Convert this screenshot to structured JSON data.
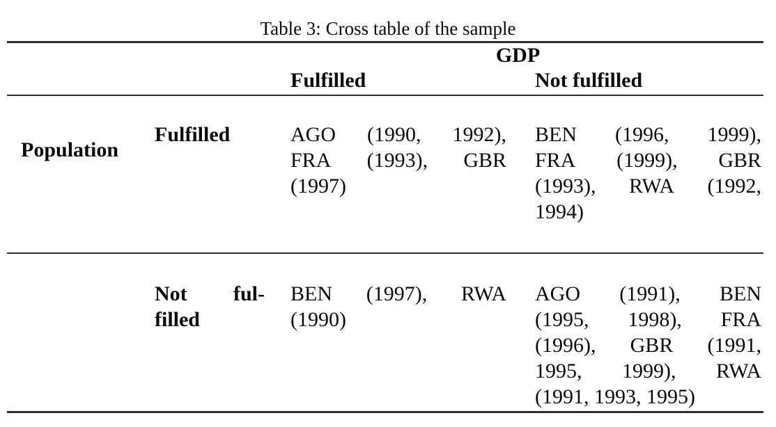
{
  "title": "Table 3: Cross table of the sample",
  "table": {
    "column_group_header": "GDP",
    "row_group_header": "Population",
    "column_headers": [
      "Fulfilled",
      "Not fulfilled"
    ],
    "rows": [
      {
        "label_lines": [
          "Fulfilled"
        ],
        "cells": [
          {
            "lines": [
              "AGO (1990, 1992),",
              "FRA (1993), GBR",
              "(1997)"
            ]
          },
          {
            "lines": [
              "BEN (1996, 1999),",
              "FRA (1999), GBR",
              "(1993), RWA (1992,",
              "1994)"
            ]
          }
        ]
      },
      {
        "label_lines": [
          "Not ful-",
          "filled"
        ],
        "cells": [
          {
            "lines": [
              "BEN (1997), RWA",
              "(1990)"
            ]
          },
          {
            "lines": [
              "AGO (1991), BEN",
              "(1995, 1998), FRA",
              "(1996), GBR (1991,",
              "1995, 1999), RWA",
              "(1991, 1993, 1995)"
            ]
          }
        ]
      }
    ]
  },
  "colors": {
    "text": "#0a0a0a",
    "rule": "#2e2e2e",
    "background": "#ffffff"
  }
}
